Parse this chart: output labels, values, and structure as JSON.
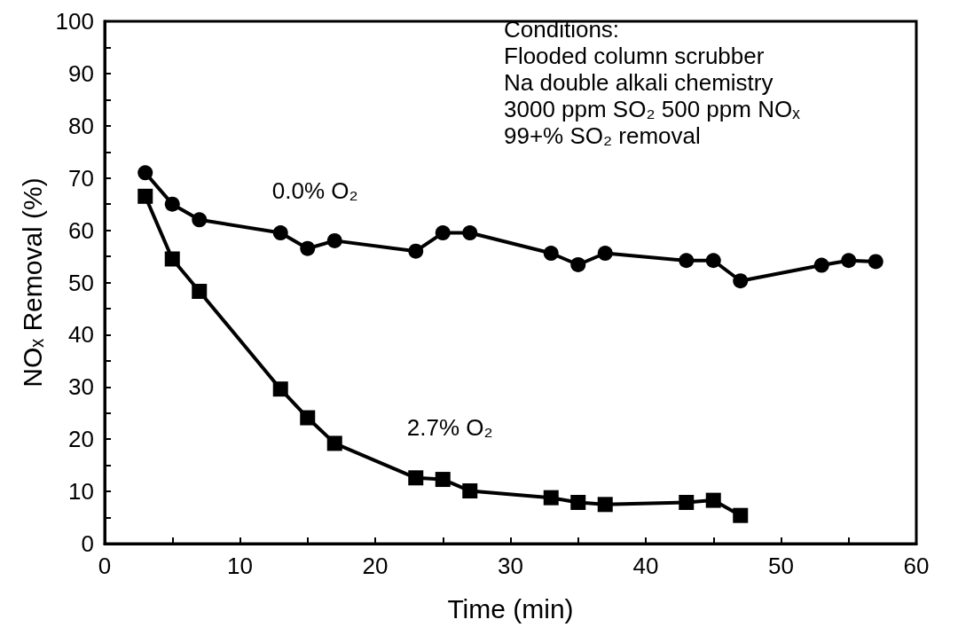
{
  "chart_data": {
    "type": "line",
    "xlabel": "Time (min)",
    "ylabel": "NOₓ Removal (%)",
    "xlim": [
      0,
      60
    ],
    "xticks": [
      0,
      {
        "value": 5,
        "label": null
      },
      10,
      {
        "value": 15,
        "label": null
      },
      20,
      {
        "value": 25,
        "label": null
      },
      30,
      {
        "value": 35,
        "label": null
      },
      40,
      {
        "value": 45,
        "label": null
      },
      50,
      {
        "value": 55,
        "label": null
      },
      60
    ],
    "ylim": [
      0,
      100
    ],
    "yticks": [
      0,
      {
        "value": 5,
        "label": null
      },
      10,
      {
        "value": 15,
        "label": null
      },
      20,
      {
        "value": 25,
        "label": null
      },
      30,
      {
        "value": 35,
        "label": null
      },
      40,
      {
        "value": 45,
        "label": null
      },
      50,
      {
        "value": 55,
        "label": null
      },
      60,
      {
        "value": 65,
        "label": null
      },
      70,
      {
        "value": 75,
        "label": null
      },
      80,
      {
        "value": 85,
        "label": null
      },
      90,
      {
        "value": 95,
        "label": null
      },
      100
    ],
    "grid": false,
    "line_style": "solid",
    "series": [
      {
        "name": "0.0% O₂",
        "color": "#000000",
        "marker": "circle",
        "x": [
          3,
          5,
          7,
          13,
          15,
          17,
          23,
          25,
          27,
          33,
          35,
          37,
          43,
          45,
          47,
          53,
          55,
          57
        ],
        "values": [
          71,
          65,
          62,
          59.5,
          56.5,
          58,
          56,
          59.5,
          59.5,
          55.6,
          53.4,
          55.6,
          54.2,
          54.2,
          50.3,
          53.3,
          54.2,
          54
        ]
      },
      {
        "name": "2.7% O₂",
        "color": "#000000",
        "marker": "square",
        "x": [
          3,
          5,
          7,
          13,
          15,
          17,
          23,
          25,
          27,
          33,
          35,
          37,
          43,
          45,
          47
        ],
        "values": [
          66.5,
          54.5,
          48.3,
          29.6,
          24.1,
          19.2,
          12.6,
          12.3,
          10.1,
          8.8,
          7.9,
          7.5,
          7.9,
          8.3,
          5.4
        ]
      }
    ],
    "annotations": [
      "Conditions:",
      "Flooded column scrubber",
      "Na double alkali chemistry",
      "3000 ppm SO₂ 500 ppm NOₓ",
      "99+% SO₂ removal"
    ]
  }
}
